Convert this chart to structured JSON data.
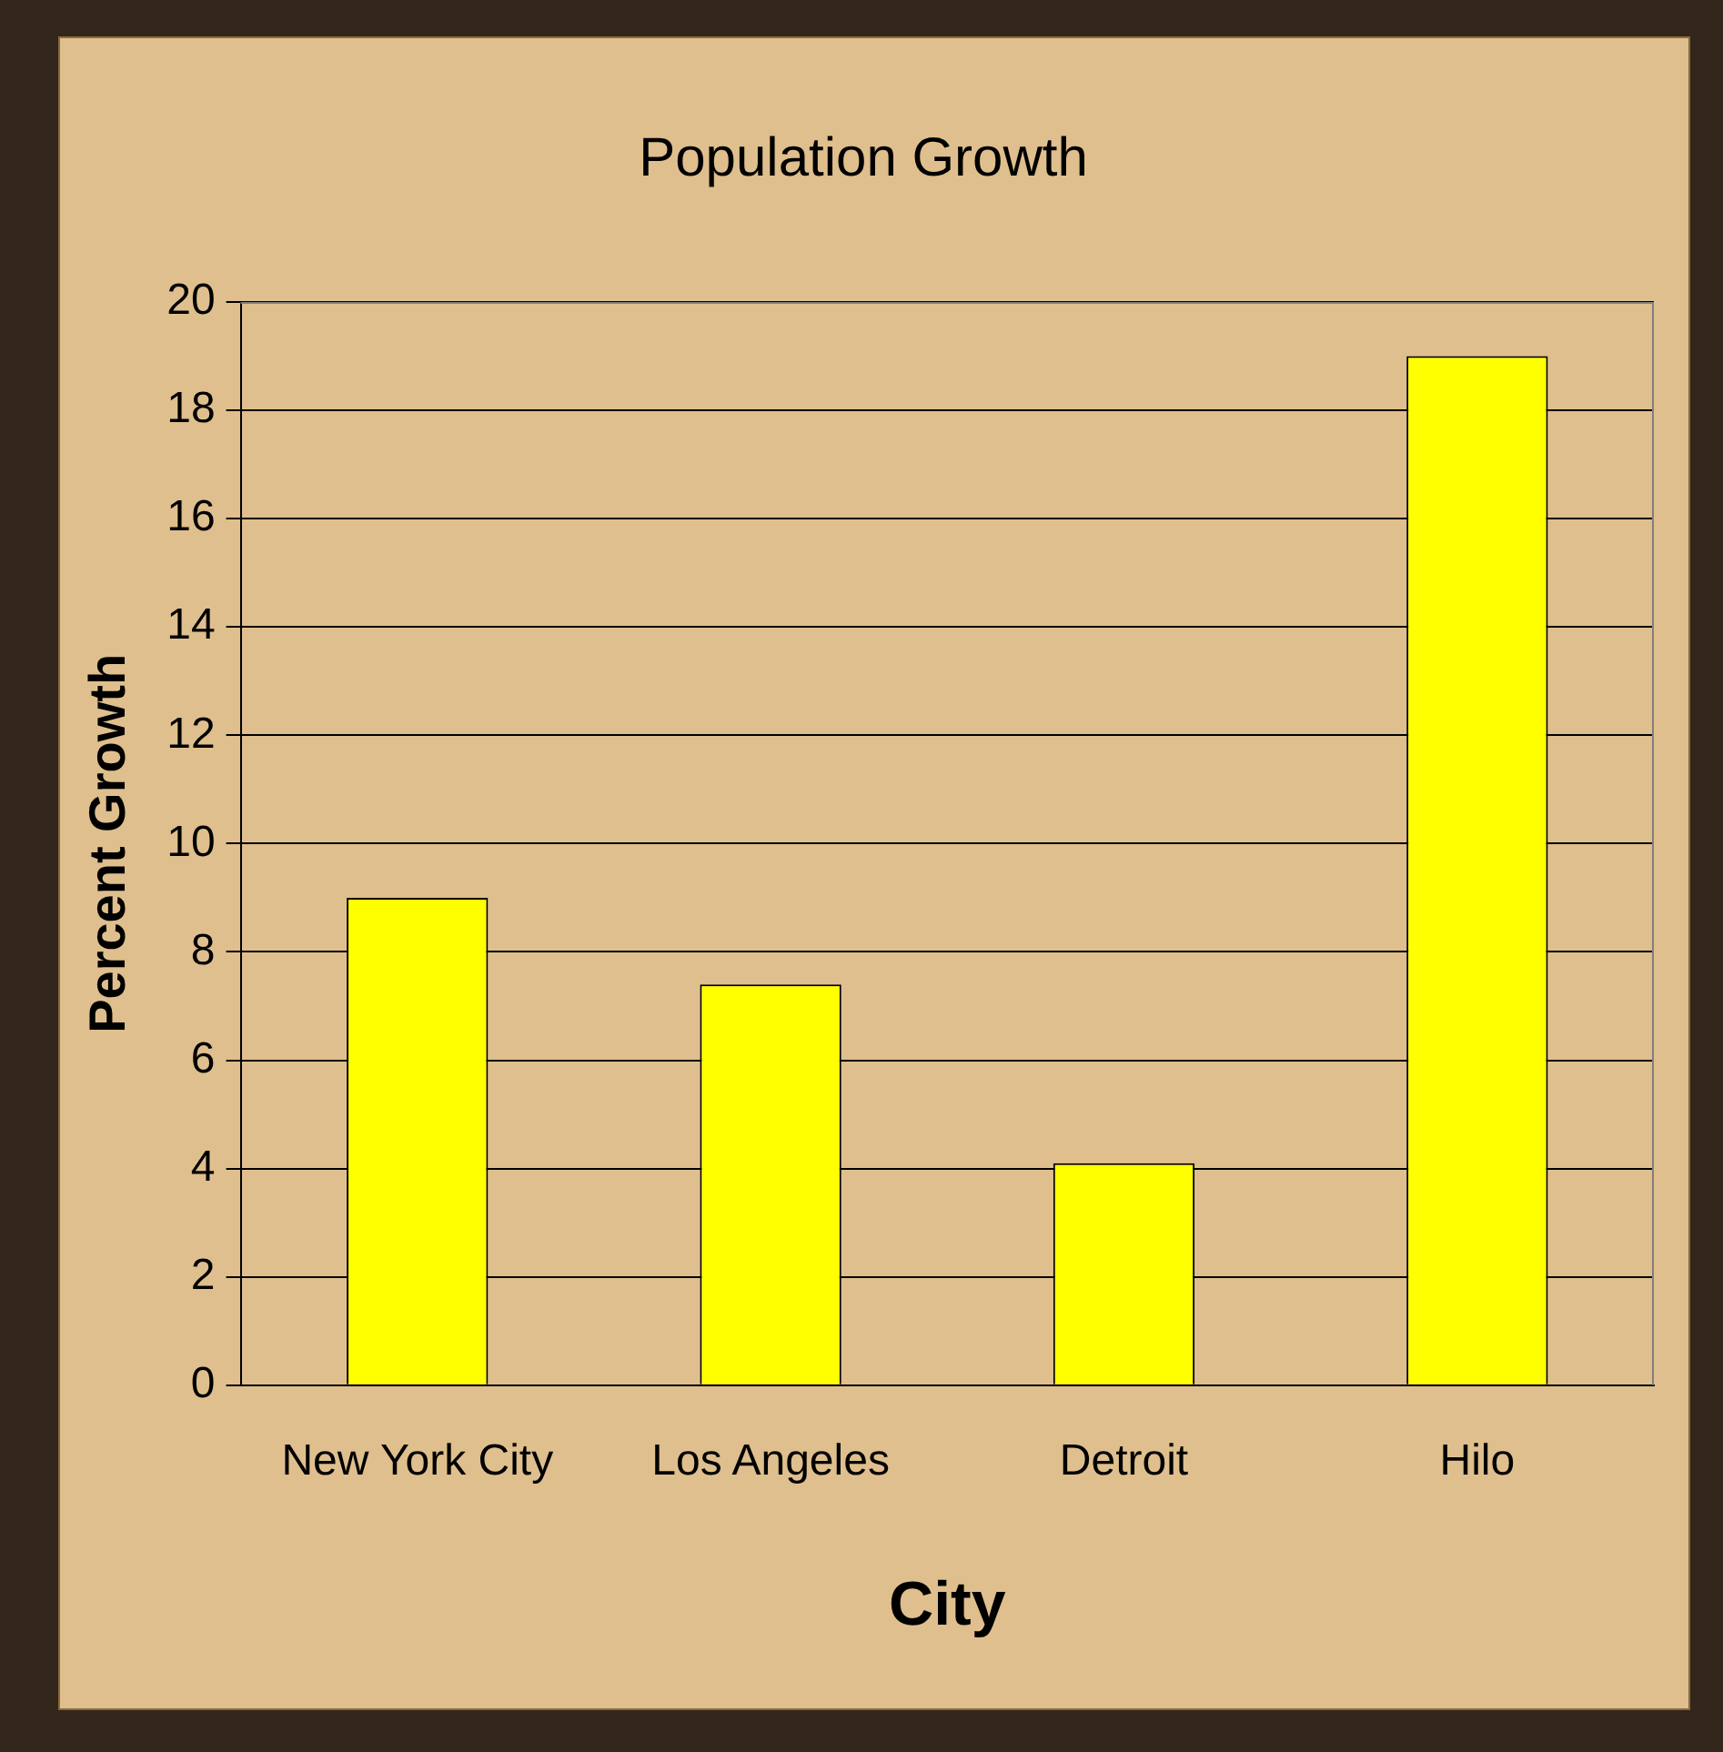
{
  "chart_data": {
    "type": "bar",
    "title": "Population Growth",
    "xlabel": "City",
    "ylabel": "Percent Growth",
    "categories": [
      "New York City",
      "Los Angeles",
      "Detroit",
      "Hilo"
    ],
    "values": [
      9,
      7.4,
      4.1,
      19
    ],
    "color": "#ffff00",
    "ylim": [
      0,
      20
    ],
    "yticks": [
      0,
      2,
      4,
      6,
      8,
      10,
      12,
      14,
      16,
      18,
      20
    ],
    "grid": "y"
  }
}
